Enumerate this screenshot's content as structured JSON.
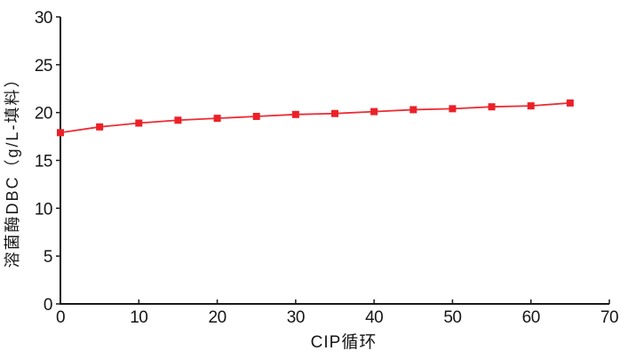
{
  "figure": {
    "background": "#ffffff"
  },
  "chart_data": {
    "type": "line",
    "title": "",
    "xlabel": "CIP循环",
    "ylabel": "溶菌酶DBC（g/L-填料）",
    "x": [
      0,
      5,
      10,
      15,
      20,
      25,
      30,
      35,
      40,
      45,
      50,
      55,
      60,
      65
    ],
    "values": [
      17.9,
      18.5,
      18.9,
      19.2,
      19.4,
      19.6,
      19.8,
      19.9,
      20.1,
      20.3,
      20.4,
      20.6,
      20.7,
      21.0
    ],
    "xlim": [
      0,
      70
    ],
    "ylim": [
      0,
      30
    ],
    "xticks": [
      0,
      10,
      20,
      30,
      40,
      50,
      60,
      70
    ],
    "yticks": [
      0,
      5,
      10,
      15,
      20,
      25,
      30
    ],
    "grid": false,
    "legend": "none",
    "marker": "square",
    "axis_color": "#1a1a1a",
    "line_color": "#ed2c33",
    "marker_color": "#ec2127"
  }
}
